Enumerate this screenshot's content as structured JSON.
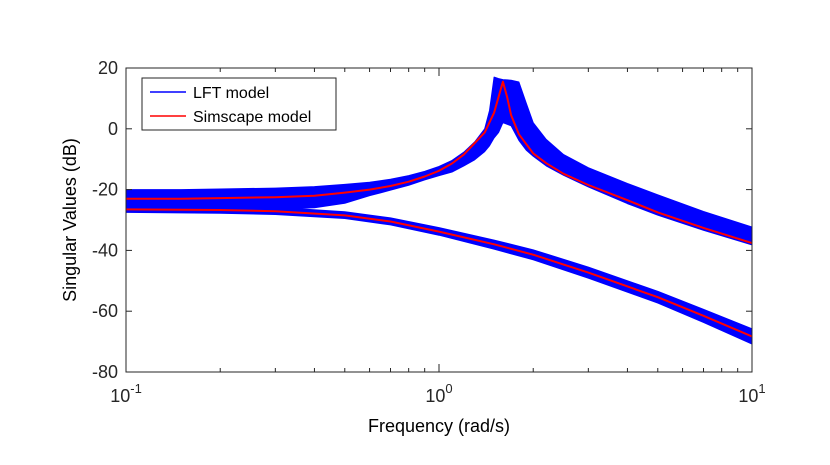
{
  "chart_data": {
    "type": "line",
    "title": "",
    "xlabel": "Frequency (rad/s)",
    "ylabel": "Singular Values (dB)",
    "xscale": "log",
    "xlim": [
      0.1,
      10
    ],
    "ylim": [
      -80,
      20
    ],
    "x_ticks": [
      {
        "value": 0.1,
        "base": "10",
        "exp": "-1"
      },
      {
        "value": 1,
        "base": "10",
        "exp": "0"
      },
      {
        "value": 10,
        "base": "10",
        "exp": "1"
      }
    ],
    "y_ticks": [
      20,
      0,
      -20,
      -40,
      -60,
      -80
    ],
    "legend_position": "top-left",
    "series": [
      {
        "name": "LFT model",
        "color": "#0000ff",
        "style": "band",
        "bands": [
          {
            "x": [
              0.1,
              0.15,
              0.2,
              0.3,
              0.4,
              0.5,
              0.6,
              0.7,
              0.8,
              0.9,
              1.0,
              1.1,
              1.2,
              1.3,
              1.4,
              1.45,
              1.5,
              1.55,
              1.6,
              1.7,
              1.8,
              1.9,
              2.0,
              2.2,
              2.5,
              3,
              4,
              5,
              7,
              10
            ],
            "upper": [
              -20,
              -20,
              -19.8,
              -19.5,
              -19,
              -18.3,
              -17.6,
              -16.6,
              -15.4,
              -14,
              -12.4,
              -10.4,
              -7.7,
              -4.3,
              0,
              6,
              17,
              16.5,
              16.2,
              16,
              15.4,
              8.5,
              2,
              -3.5,
              -8.5,
              -12.8,
              -18,
              -21.7,
              -27.2,
              -32.3
            ],
            "lower": [
              -26,
              -26,
              -26.2,
              -26.4,
              -26,
              -24.5,
              -22,
              -20.2,
              -18.6,
              -16.8,
              -15.4,
              -14.2,
              -12.2,
              -10.2,
              -7.5,
              -5.6,
              -3,
              -1.2,
              2,
              1,
              -3.8,
              -7,
              -9,
              -12.2,
              -15.3,
              -19.1,
              -24.6,
              -28.4,
              -33.4,
              -38.2
            ]
          },
          {
            "x": [
              0.1,
              0.2,
              0.3,
              0.5,
              0.7,
              1.0,
              1.5,
              2.0,
              3,
              5,
              7,
              10
            ],
            "upper": [
              -25.3,
              -25.5,
              -25.8,
              -27.3,
              -29.3,
              -32.5,
              -36.6,
              -39.8,
              -45.5,
              -53.5,
              -59.4,
              -65.8
            ],
            "lower": [
              -27.5,
              -27.8,
              -28.2,
              -29.5,
              -31.6,
              -35,
              -39.6,
              -43.1,
              -49.1,
              -57.3,
              -63.7,
              -70.8
            ]
          }
        ]
      },
      {
        "name": "Simscape model",
        "color": "#ff0000",
        "style": "line",
        "curves": [
          {
            "x": [
              0.1,
              0.15,
              0.2,
              0.3,
              0.4,
              0.5,
              0.6,
              0.7,
              0.8,
              0.9,
              1.0,
              1.1,
              1.2,
              1.3,
              1.4,
              1.5,
              1.55,
              1.6,
              1.65,
              1.7,
              1.8,
              2.0,
              2.2,
              2.5,
              3,
              4,
              5,
              7,
              10
            ],
            "y": [
              -23,
              -23,
              -22.8,
              -22.5,
              -22,
              -21,
              -20,
              -18.8,
              -17.4,
              -15.7,
              -13.8,
              -11.4,
              -8.5,
              -4.7,
              -1.2,
              5.3,
              10.5,
              15.5,
              10.5,
              4.5,
              -1.8,
              -8.1,
              -11.3,
              -14.8,
              -18.5,
              -23.5,
              -27.5,
              -32.6,
              -37.6
            ]
          },
          {
            "x": [
              0.1,
              0.2,
              0.3,
              0.5,
              0.7,
              1.0,
              1.5,
              2.0,
              3,
              5,
              7,
              10
            ],
            "y": [
              -26.5,
              -26.7,
              -27.1,
              -28.5,
              -30.5,
              -33.8,
              -38,
              -41.4,
              -47.3,
              -55.4,
              -61.5,
              -68.3
            ]
          }
        ]
      }
    ]
  }
}
